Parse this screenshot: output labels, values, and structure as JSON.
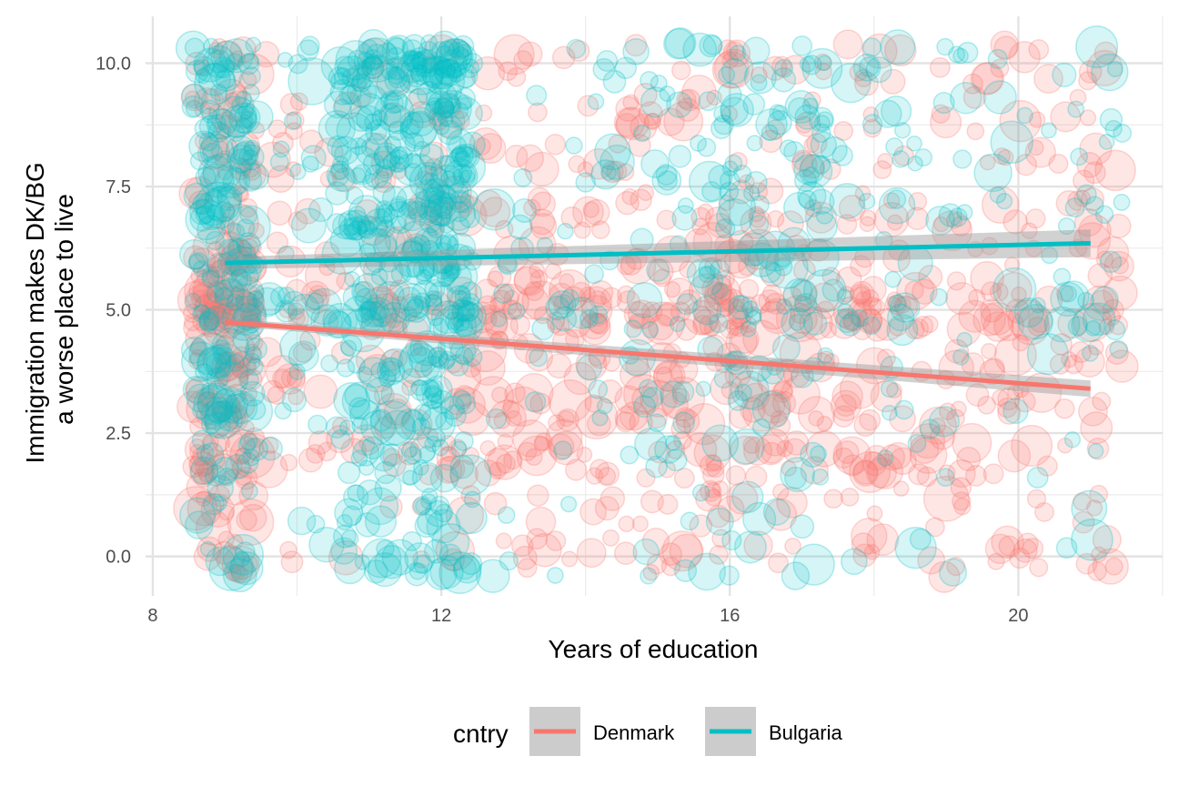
{
  "chart_data": {
    "type": "scatter",
    "title": "",
    "xlabel": "Years of education",
    "ylabel_lines": [
      "Immigration makes DK/BG",
      "a worse place to live"
    ],
    "xlim": [
      7.9,
      22.0
    ],
    "ylim": [
      -0.8,
      10.95
    ],
    "x_ticks": [
      8,
      12,
      16,
      20
    ],
    "x_tick_labels": [
      "8",
      "12",
      "16",
      "20"
    ],
    "y_ticks": [
      0,
      2.5,
      5,
      7.5,
      10
    ],
    "y_tick_labels": [
      "0.0",
      "2.5",
      "5.0",
      "7.5",
      "10.0"
    ],
    "grid": true,
    "legend": {
      "position": "bottom",
      "title": "cntry",
      "entries": [
        "Denmark",
        "Bulgaria"
      ]
    },
    "series": [
      {
        "name": "Denmark",
        "color": "#F8766D",
        "point_alpha": 0.18,
        "x_range": [
          9,
          21.5
        ],
        "clusters_y": [
          0,
          1,
          2,
          3,
          4,
          5,
          6,
          7,
          8,
          9,
          10
        ],
        "heavy_y": [
          2,
          3,
          4,
          5,
          7
        ],
        "trend": {
          "x": [
            9,
            21
          ],
          "y": [
            4.75,
            3.4
          ],
          "ci": 0.12
        }
      },
      {
        "name": "Bulgaria",
        "color": "#00BFC4",
        "point_alpha": 0.16,
        "x_range": [
          9,
          21.5
        ],
        "clusters_x": [
          9,
          11,
          12
        ],
        "clusters_y": [
          0,
          1,
          2,
          3,
          4,
          5,
          6,
          7,
          8,
          9,
          10
        ],
        "trend": {
          "x": [
            9,
            21
          ],
          "y": [
            5.95,
            6.35
          ],
          "ci": 0.2
        }
      }
    ]
  }
}
